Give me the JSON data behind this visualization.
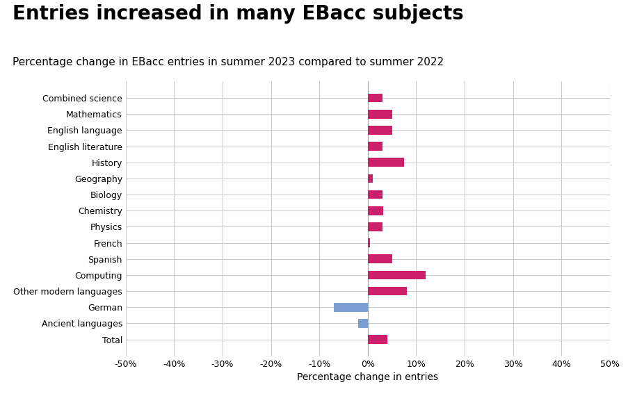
{
  "title": "Entries increased in many EBacc subjects",
  "subtitle": "Percentage change in EBacc entries in summer 2023 compared to summer 2022",
  "xlabel": "Percentage change in entries",
  "categories": [
    "Combined science",
    "Mathematics",
    "English language",
    "English literature",
    "History",
    "Geography",
    "Biology",
    "Chemistry",
    "Physics",
    "French",
    "Spanish",
    "Computing",
    "Other modern languages",
    "German",
    "Ancient languages",
    "Total"
  ],
  "values": [
    3.0,
    5.0,
    5.0,
    3.0,
    7.5,
    1.0,
    3.0,
    3.2,
    3.0,
    0.4,
    5.0,
    12.0,
    8.0,
    -7.0,
    -2.0,
    4.0
  ],
  "colors": [
    "#cc1f6a",
    "#cc1f6a",
    "#cc1f6a",
    "#cc1f6a",
    "#cc1f6a",
    "#cc1f6a",
    "#cc1f6a",
    "#cc1f6a",
    "#cc1f6a",
    "#cc1f6a",
    "#cc1f6a",
    "#cc1f6a",
    "#cc1f6a",
    "#7b9fd4",
    "#7b9fd4",
    "#cc1f6a"
  ],
  "xlim": [
    -50,
    50
  ],
  "xticks": [
    -50,
    -40,
    -30,
    -20,
    -10,
    0,
    10,
    20,
    30,
    40,
    50
  ],
  "xtick_labels": [
    "-50%",
    "-40%",
    "-30%",
    "-20%",
    "-10%",
    "0%",
    "10%",
    "20%",
    "30%",
    "40%",
    "50%"
  ],
  "background_color": "#ffffff",
  "grid_color": "#cccccc",
  "title_fontsize": 20,
  "subtitle_fontsize": 11,
  "tick_fontsize": 9,
  "xlabel_fontsize": 10,
  "bar_height": 0.55
}
